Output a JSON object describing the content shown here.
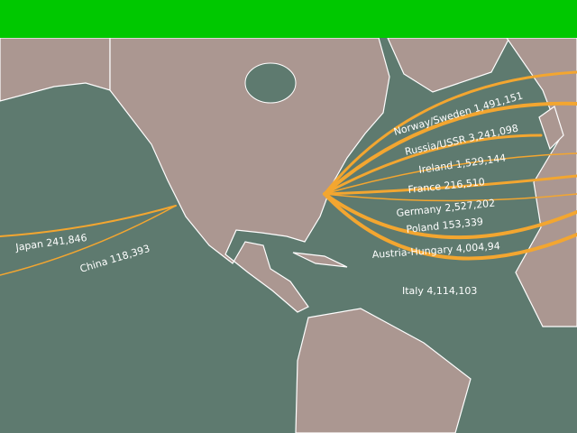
{
  "flows": [
    {
      "label": "Norway/Sweden 1,491,151"
    },
    {
      "label": "Russia/USSR 3,241,098"
    },
    {
      "label": "Ireland 1,529,144"
    },
    {
      "label": "France 216,510"
    },
    {
      "label": "Germany 2,527,202"
    },
    {
      "label": "Poland 153,339"
    },
    {
      "label": "Austria-Hungary 4,004,94"
    },
    {
      "label": "Italy 4,114,103"
    },
    {
      "label": "Japan 241,846"
    },
    {
      "label": "China 118,393"
    }
  ]
}
